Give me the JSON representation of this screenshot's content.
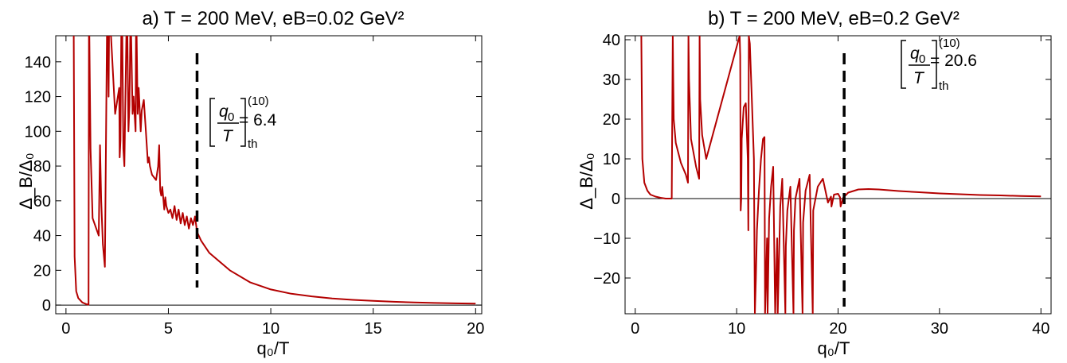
{
  "chart_data": [
    {
      "type": "line",
      "title": "a) T = 200 MeV, eB=0.02 GeV²",
      "xlabel": "q₀/T",
      "ylabel": "Δ_B/Δ₀",
      "xlim": [
        -0.5,
        20.3
      ],
      "ylim": [
        -5,
        155
      ],
      "xticks": [
        0,
        5,
        10,
        15,
        20
      ],
      "yticks": [
        0,
        20,
        40,
        60,
        80,
        100,
        120,
        140
      ],
      "grid": false,
      "line_color": "#b30000",
      "threshold": {
        "x": 6.4,
        "label": "= 6.4"
      },
      "series": [
        {
          "x": [
            0.38,
            0.42,
            0.5,
            0.6,
            0.8,
            1.0,
            1.1,
            1.12,
            1.14,
            1.2,
            1.3,
            1.6,
            1.66,
            1.72,
            1.8,
            1.9,
            2.0,
            2.04,
            2.08,
            2.1,
            2.15,
            2.2,
            2.4,
            2.6,
            2.62,
            2.66,
            2.7,
            2.75,
            2.8,
            2.85,
            2.95,
            3.0,
            3.05,
            3.1,
            3.14,
            3.18,
            3.25,
            3.3,
            3.4,
            3.42,
            3.45,
            3.5,
            3.55,
            3.6,
            3.65,
            3.7,
            3.8,
            3.9,
            4.0,
            4.05,
            4.1,
            4.2,
            4.4,
            4.5,
            4.55,
            4.6,
            4.65,
            4.7,
            4.8,
            4.85,
            4.9,
            5.0,
            5.1,
            5.2,
            5.3,
            5.4,
            5.5,
            5.6,
            5.7,
            5.8,
            5.9,
            6.0,
            6.1,
            6.2,
            6.3,
            6.4,
            6.6,
            7.0,
            7.5,
            8.0,
            9.0,
            10.0,
            11.0,
            12.0,
            13.0,
            14.0,
            15.0,
            16.0,
            17.0,
            18.0,
            19.0,
            20.0
          ],
          "y": [
            155,
            28,
            8,
            4,
            1.5,
            0.5,
            0.2,
            155,
            155,
            90,
            50,
            40,
            92,
            60,
            35,
            22,
            155,
            155,
            120,
            155,
            155,
            155,
            110,
            125,
            85,
            95,
            155,
            155,
            90,
            80,
            155,
            155,
            100,
            115,
            155,
            155,
            110,
            120,
            100,
            155,
            155,
            110,
            125,
            112,
            100,
            112,
            118,
            100,
            82,
            85,
            80,
            75,
            72,
            80,
            92,
            66,
            63,
            68,
            55,
            62,
            57,
            53,
            55,
            50,
            57,
            49,
            55,
            47,
            53,
            46,
            51,
            44,
            50,
            46,
            51,
            42,
            37,
            30,
            25,
            20,
            13,
            9,
            6.5,
            5,
            3.8,
            3,
            2.4,
            1.9,
            1.5,
            1.2,
            1,
            0.8
          ]
        }
      ]
    },
    {
      "type": "line",
      "title": "b) T = 200 MeV, eB=0.2 GeV²",
      "xlabel": "q₀/T",
      "ylabel": "Δ_B/Δ₀",
      "xlim": [
        -1,
        41
      ],
      "ylim": [
        -29,
        41
      ],
      "xticks": [
        0,
        10,
        20,
        30,
        40
      ],
      "yticks": [
        -20,
        -10,
        0,
        10,
        20,
        30,
        40
      ],
      "grid": false,
      "line_color": "#b30000",
      "threshold": {
        "x": 20.6,
        "label": "= 20.6"
      },
      "series": [
        {
          "x": [
            0.6,
            0.7,
            0.9,
            1.2,
            1.5,
            2.0,
            2.5,
            3.0,
            3.6,
            3.7,
            3.75,
            3.8,
            4.0,
            4.5,
            5.0,
            5.2,
            5.25,
            5.3,
            5.5,
            6.0,
            6.3,
            6.35,
            6.4,
            6.6,
            7.0,
            10.3,
            10.35,
            10.4,
            10.45,
            10.5,
            10.7,
            10.9,
            11.1,
            11.15,
            11.2,
            11.3,
            11.5,
            11.7,
            11.8,
            11.9,
            12.0,
            12.2,
            12.4,
            12.6,
            12.75,
            12.8,
            12.9,
            13.0,
            13.05,
            13.2,
            13.4,
            13.6,
            13.8,
            14.0,
            14.05,
            14.3,
            14.5,
            14.8,
            14.85,
            15.0,
            15.3,
            15.6,
            15.65,
            15.8,
            16.2,
            16.5,
            16.55,
            16.8,
            17.2,
            17.5,
            17.55,
            18.0,
            18.5,
            19.0,
            19.3,
            19.35,
            19.6,
            20.0,
            20.2,
            20.25,
            20.5,
            21.0,
            22.0,
            23.0,
            24.0,
            26.0,
            28.0,
            30.0,
            32.0,
            34.0,
            36.0,
            38.0,
            40.0
          ],
          "y": [
            41,
            10,
            4,
            2,
            1,
            0.5,
            0.2,
            0,
            0,
            41,
            30,
            20,
            14,
            9,
            6,
            4,
            41,
            30,
            15,
            8,
            5,
            41,
            25,
            16,
            10,
            41,
            36,
            -3,
            0,
            15,
            23,
            24,
            10,
            -8,
            41,
            39,
            25,
            10,
            -29,
            -20,
            -8,
            2,
            10,
            15,
            15.5,
            -29,
            -20,
            -10,
            -29,
            -5,
            3,
            8,
            -29,
            -10,
            -29,
            -2,
            5,
            -29,
            -12,
            -3,
            3,
            -29,
            -8,
            0,
            5,
            -29,
            -6,
            2,
            6,
            -29,
            -3,
            3,
            5,
            -1,
            0.5,
            -2,
            1,
            1.2,
            0.3,
            -2,
            0.2,
            1.5,
            2.3,
            2.4,
            2.3,
            1.9,
            1.6,
            1.3,
            1.1,
            0.9,
            0.8,
            0.65,
            0.55
          ]
        }
      ]
    }
  ]
}
